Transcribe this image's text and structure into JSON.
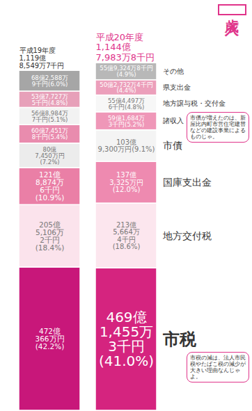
{
  "chart_data": {
    "type": "bar",
    "title": "歳入",
    "stacked": true,
    "data_labels": true,
    "tick_labels": false,
    "ylim": [
      0,
      115000000
    ],
    "categories": [
      "市税",
      "地方交付税",
      "国庫支出金",
      "市債",
      "諸収入",
      "地方譲与税・交付金",
      "県支出金",
      "その他"
    ],
    "series": [
      {
        "name": "平成19年度",
        "total": 111985497,
        "total_label": "1,119億\n8,549万7千円",
        "values": [
          47203660,
          20551062,
          12188746,
          8074500,
          6074518,
          5689847,
          5377275,
          6825889
        ],
        "value_labels": [
          "472億\n366万円\n(42.2%)",
          "205億\n5,106万\n2千円\n(18.4%)",
          "121億\n8,874万\n6千円\n(10.9%)",
          "80億\n7,450万円\n(7.2%)",
          "60億7,451万\n8千円(5.4%)",
          "56億8,984万\n7千円(5.1%)",
          "53億7,727万\n5千円(4.8%)",
          "68億2,588万\n9千円(6.0%)"
        ],
        "colors": [
          "#c8177a",
          "#fbe3ec",
          "#ea7fa6",
          "#ececec",
          "#e98cae",
          "#f2f2f2",
          "#e7a0b9",
          "#a6a6a6"
        ]
      },
      {
        "name": "平成20年度",
        "total": 114479838,
        "total_label": "1,144億\n7,983万8千円",
        "values": [
          46914553,
          21356644,
          13733250,
          10393000,
          5916843,
          5544976,
          5027324,
          5593248
        ],
        "value_labels": [
          "469億\n1,455万\n3千円\n(41.0%)",
          "213億\n5,664万\n4千円\n(18.6%)",
          "137億\n3,325万円\n(12.0%)",
          "103億\n9,300万円(9.1%)",
          "59億1,684万\n3千円(5.2%)",
          "55億4,497万\n6千円(4.8%)",
          "50億2,732万4千円\n(4.4%)",
          "55億9,324万8千円\n(4.9%)"
        ],
        "colors": [
          "#d5247f",
          "#fce6ee",
          "#ee8ab0",
          "#f4f4f4",
          "#ef97b8",
          "#f7f7f7",
          "#ec9fbb",
          "#b8b8b8"
        ]
      }
    ],
    "annotations": [
      {
        "text": "市債が増えたのは、新屋比内町市営住宅建替などの建設事業によるものじゃ。",
        "category": "市債"
      },
      {
        "text": "市税の減は、法人市民税やたばこ税の減少が大きい理由なんじゃよ。",
        "category": "市税"
      }
    ]
  }
}
